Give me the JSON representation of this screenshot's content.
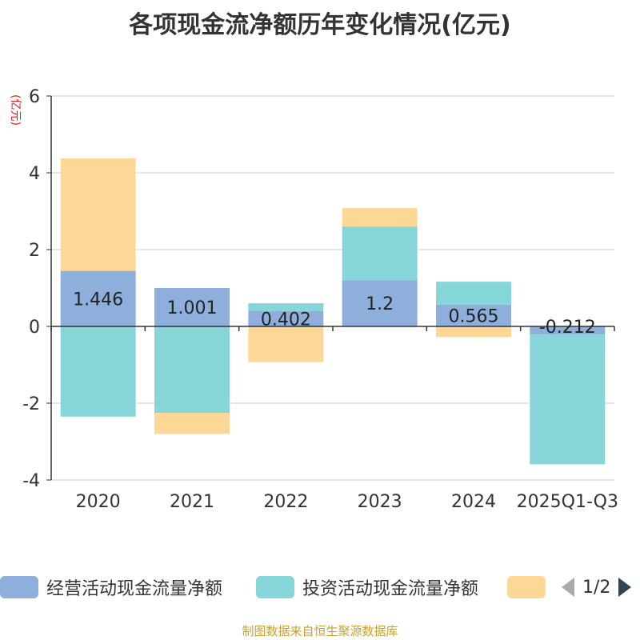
{
  "title": "各项现金流净额历年变化情况(亿元)",
  "y_unit": "(亿元)",
  "source": "制图数据来自恒生聚源数据库",
  "legend_pager": "1/2",
  "colors": {
    "operating": "#8eaedb",
    "investing": "#86d5d8",
    "financing": "#fdd796",
    "axis": "#333333",
    "grid": "#cccccc",
    "arrow_disabled": "#aaaaaa",
    "arrow_active": "#2f4554"
  },
  "chart_data": {
    "type": "bar",
    "stacked": true,
    "categories": [
      "2020",
      "2021",
      "2022",
      "2023",
      "2024",
      "2025Q1-Q3"
    ],
    "ylim": [
      -4,
      6
    ],
    "yticks": [
      -4,
      -2,
      0,
      2,
      4,
      6
    ],
    "ylabel": "(亿元)",
    "series": [
      {
        "name": "经营活动现金流量净额",
        "color_key": "operating",
        "values": [
          1.446,
          1.001,
          0.402,
          1.2,
          0.565,
          -0.212
        ],
        "labels": [
          "1.446",
          "1.001",
          "0.402",
          "1.2",
          "0.565",
          "-0.212"
        ]
      },
      {
        "name": "投资活动现金流量净额",
        "color_key": "investing",
        "values": [
          -2.35,
          -2.25,
          0.2,
          1.4,
          0.6,
          -3.38
        ]
      },
      {
        "name": "",
        "color_key": "financing",
        "values": [
          2.93,
          -0.55,
          -0.93,
          0.48,
          -0.28,
          0
        ]
      }
    ]
  }
}
